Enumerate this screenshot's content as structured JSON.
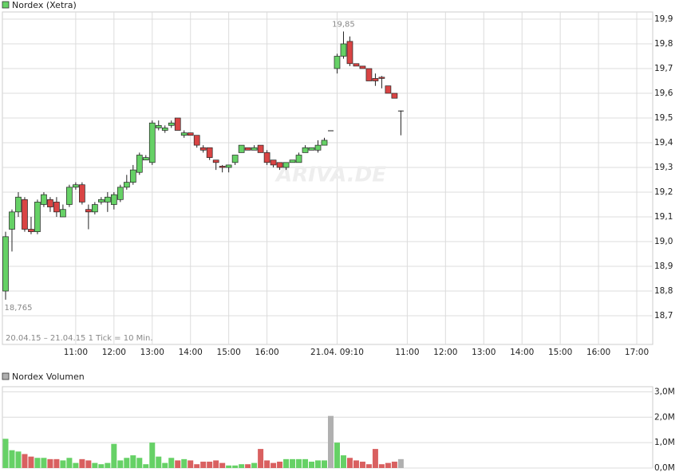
{
  "chart_data": [
    {
      "type": "candlestick",
      "title": "Nordex (Xetra)",
      "subtitle": "20.04.15 – 21.04.15   1 Tick = 10 Min.",
      "watermark": "ARIVA.DE",
      "up_color": "#66d166",
      "down_color": "#d94444",
      "grid": true,
      "xlim": [
        -0.5,
        101.5
      ],
      "ylim": [
        18.584,
        19.929
      ],
      "xticks": [
        {
          "value": 11,
          "label": "11:00"
        },
        {
          "value": 17,
          "label": "12:00"
        },
        {
          "value": 23,
          "label": "13:00"
        },
        {
          "value": 29,
          "label": "14:00"
        },
        {
          "value": 35,
          "label": "15:00"
        },
        {
          "value": 41,
          "label": "16:00"
        },
        {
          "value": 52,
          "label": "21.04. 09:10"
        },
        {
          "value": 63,
          "label": "11:00"
        },
        {
          "value": 69,
          "label": "12:00"
        },
        {
          "value": 75,
          "label": "13:00"
        },
        {
          "value": 81,
          "label": "14:00"
        },
        {
          "value": 87,
          "label": "15:00"
        },
        {
          "value": 93,
          "label": "16:00"
        },
        {
          "value": 99,
          "label": "17:00"
        }
      ],
      "yticks": [
        {
          "value": 18.7,
          "label": "18,7"
        },
        {
          "value": 18.8,
          "label": "18,8"
        },
        {
          "value": 18.9,
          "label": "18,9"
        },
        {
          "value": 19.0,
          "label": "19,0"
        },
        {
          "value": 19.1,
          "label": "19,1"
        },
        {
          "value": 19.2,
          "label": "19,2"
        },
        {
          "value": 19.3,
          "label": "19,3"
        },
        {
          "value": 19.4,
          "label": "19,4"
        },
        {
          "value": 19.5,
          "label": "19,5"
        },
        {
          "value": 19.6,
          "label": "19,6"
        },
        {
          "value": 19.7,
          "label": "19,7"
        },
        {
          "value": 19.8,
          "label": "19,8"
        },
        {
          "value": 19.9,
          "label": "19,9"
        }
      ],
      "open": [
        18.8,
        19.05,
        19.12,
        19.17,
        19.05,
        19.04,
        19.15,
        19.17,
        19.16,
        19.1,
        19.15,
        19.22,
        19.23,
        19.13,
        19.12,
        19.16,
        19.16,
        19.15,
        19.17,
        19.22,
        19.24,
        19.28,
        19.33,
        19.32,
        19.46,
        19.45,
        19.47,
        19.5,
        19.43,
        19.44,
        19.43,
        19.38,
        19.38,
        19.33,
        19.305,
        19.3,
        19.32,
        19.36,
        19.38,
        19.37,
        19.39,
        19.36,
        19.33,
        19.32,
        19.3,
        19.32,
        19.32,
        19.36,
        19.37,
        19.37,
        19.39,
        19.45,
        19.7,
        19.75,
        19.81,
        19.72,
        19.71,
        19.7,
        19.66,
        19.665,
        19.63,
        19.6,
        19.53
      ],
      "high": [
        19.04,
        19.13,
        19.2,
        19.18,
        19.1,
        19.17,
        19.2,
        19.18,
        19.18,
        19.15,
        19.23,
        19.24,
        19.24,
        19.15,
        19.16,
        19.18,
        19.2,
        19.2,
        19.23,
        19.27,
        19.31,
        19.36,
        19.35,
        19.49,
        19.49,
        19.47,
        19.49,
        19.5,
        19.45,
        19.44,
        19.43,
        19.39,
        19.38,
        19.33,
        19.31,
        19.31,
        19.35,
        19.39,
        19.38,
        19.39,
        19.39,
        19.37,
        19.33,
        19.32,
        19.32,
        19.33,
        19.36,
        19.39,
        19.38,
        19.41,
        19.42,
        19.45,
        19.76,
        19.85,
        19.83,
        19.72,
        19.71,
        19.7,
        19.68,
        19.67,
        19.63,
        19.6,
        19.53
      ],
      "low": [
        18.765,
        18.96,
        19.1,
        19.04,
        19.03,
        19.03,
        19.14,
        19.12,
        19.1,
        19.1,
        19.14,
        19.21,
        19.15,
        19.05,
        19.11,
        19.15,
        19.12,
        19.13,
        19.16,
        19.21,
        19.23,
        19.27,
        19.33,
        19.31,
        19.45,
        19.44,
        19.46,
        19.45,
        19.42,
        19.43,
        19.38,
        19.36,
        19.33,
        19.29,
        19.28,
        19.28,
        19.31,
        19.36,
        19.37,
        19.37,
        19.36,
        19.31,
        19.3,
        19.29,
        19.29,
        19.32,
        19.32,
        19.36,
        19.37,
        19.36,
        19.39,
        19.45,
        19.68,
        19.74,
        19.71,
        19.71,
        19.7,
        19.65,
        19.63,
        19.62,
        19.6,
        19.58,
        19.43
      ],
      "close": [
        19.02,
        19.12,
        19.18,
        19.05,
        19.04,
        19.16,
        19.19,
        19.14,
        19.12,
        19.13,
        19.22,
        19.23,
        19.16,
        19.12,
        19.15,
        19.17,
        19.18,
        19.19,
        19.22,
        19.24,
        19.29,
        19.35,
        19.34,
        19.48,
        19.47,
        19.46,
        19.48,
        19.45,
        19.44,
        19.43,
        19.39,
        19.37,
        19.34,
        19.32,
        19.3,
        19.31,
        19.35,
        19.39,
        19.37,
        19.38,
        19.36,
        19.32,
        19.31,
        19.3,
        19.32,
        19.33,
        19.35,
        19.38,
        19.38,
        19.39,
        19.41,
        19.45,
        19.75,
        19.8,
        19.72,
        19.71,
        19.7,
        19.65,
        19.65,
        19.66,
        19.6,
        19.58,
        19.53
      ],
      "annotations": [
        {
          "text": "19,85",
          "x": 53,
          "y": 19.85
        },
        {
          "text": "18,765",
          "x": 0,
          "y": 18.765
        }
      ]
    },
    {
      "type": "bar",
      "title": "Nordex Volumen",
      "up_color": "#66d166",
      "down_color": "#d96060",
      "flat_color": "#b0b0b0",
      "grid": true,
      "xlim": [
        -0.5,
        101.5
      ],
      "ylim": [
        0,
        3.2
      ],
      "yticks": [
        {
          "value": 0,
          "label": "0,0M"
        },
        {
          "value": 1,
          "label": "1,0M"
        },
        {
          "value": 2,
          "label": "2,0M"
        },
        {
          "value": 3,
          "label": "3,0M"
        }
      ],
      "values": [
        1.15,
        0.7,
        0.65,
        0.55,
        0.45,
        0.4,
        0.4,
        0.35,
        0.35,
        0.3,
        0.4,
        0.2,
        0.35,
        0.3,
        0.2,
        0.15,
        0.2,
        0.95,
        0.3,
        0.4,
        0.5,
        0.4,
        0.15,
        1.0,
        0.45,
        0.2,
        0.4,
        0.3,
        0.35,
        0.3,
        0.15,
        0.25,
        0.25,
        0.3,
        0.2,
        0.1,
        0.1,
        0.15,
        0.15,
        0.2,
        0.75,
        0.3,
        0.2,
        0.25,
        0.35,
        0.35,
        0.35,
        0.35,
        0.25,
        0.3,
        0.3,
        2.05,
        1.0,
        0.5,
        0.4,
        0.3,
        0.25,
        0.15,
        0.75,
        0.15,
        0.2,
        0.25,
        0.35
      ]
    }
  ]
}
